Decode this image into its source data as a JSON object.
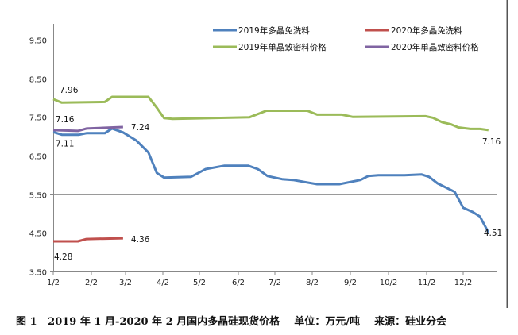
{
  "caption": "图 1   2019 年 1 月-2020 年 2 月国内多晶硅现货价格    单位：万元/吨    来源：硅业分会",
  "chart_data": {
    "type": "line",
    "title": "",
    "xlabel": "",
    "ylabel": "",
    "ylim": [
      3.5,
      9.5
    ],
    "yticks": [
      "9.50",
      "8.50",
      "7.50",
      "6.50",
      "5.50",
      "4.50",
      "3.50"
    ],
    "xticks": [
      "1/2",
      "2/2",
      "3/2",
      "4/2",
      "5/2",
      "6/2",
      "7/2",
      "8/2",
      "9/2",
      "10/2",
      "11/2",
      "12/2"
    ],
    "grid": true,
    "legend_placement": "top-right",
    "series": [
      {
        "name": "2019年多晶免洗料",
        "color": "#4f81bd",
        "x": [
          "1/2",
          "1/9",
          "1/23",
          "1/29",
          "2/13",
          "2/19",
          "2/28",
          "3/11",
          "3/21",
          "3/28",
          "4/3",
          "4/25",
          "5/7",
          "5/22",
          "6/10",
          "6/18",
          "6/26",
          "7/8",
          "7/17",
          "8/6",
          "8/24",
          "9/10",
          "9/16",
          "9/24",
          "10/15",
          "10/29",
          "11/4",
          "11/11",
          "11/25",
          "12/2",
          "12/10",
          "12/16",
          "12/23"
        ],
        "values": [
          7.11,
          7.04,
          7.04,
          7.08,
          7.08,
          7.2,
          7.1,
          6.89,
          6.58,
          6.05,
          5.93,
          5.95,
          6.15,
          6.24,
          6.24,
          6.15,
          5.97,
          5.89,
          5.87,
          5.76,
          5.76,
          5.87,
          5.97,
          5.99,
          5.99,
          6.01,
          5.95,
          5.78,
          5.56,
          5.15,
          5.04,
          4.92,
          4.51
        ]
      },
      {
        "name": "2020年多晶免洗料",
        "color": "#c0504d",
        "x": [
          "1/2",
          "1/22",
          "1/29",
          "2/28"
        ],
        "values": [
          4.28,
          4.28,
          4.34,
          4.36
        ]
      },
      {
        "name": "2019年单晶致密料价格",
        "color": "#9bbb59",
        "x": [
          "1/2",
          "1/9",
          "2/13",
          "2/19",
          "3/21",
          "3/28",
          "4/3",
          "4/10",
          "6/11",
          "6/25",
          "7/29",
          "8/6",
          "8/26",
          "9/4",
          "11/1",
          "11/7",
          "11/15",
          "11/22",
          "11/28",
          "12/8",
          "12/16",
          "12/23"
        ],
        "values": [
          7.96,
          7.87,
          7.89,
          8.02,
          8.02,
          7.74,
          7.47,
          7.45,
          7.49,
          7.66,
          7.66,
          7.56,
          7.56,
          7.5,
          7.52,
          7.48,
          7.36,
          7.31,
          7.23,
          7.19,
          7.19,
          7.16
        ]
      },
      {
        "name": "2020年单晶致密料价格",
        "color": "#8064a2",
        "x": [
          "1/2",
          "1/22",
          "1/29",
          "2/28"
        ],
        "values": [
          7.16,
          7.14,
          7.2,
          7.24
        ]
      }
    ],
    "annotations": [
      {
        "text": "7.96",
        "series": 2,
        "at": "1/2"
      },
      {
        "text": "7.16",
        "series": 3,
        "at": "1/2"
      },
      {
        "text": "7.11",
        "series": 0,
        "at": "1/2"
      },
      {
        "text": "7.24",
        "series": 3,
        "at": "2/28"
      },
      {
        "text": "4.28",
        "series": 1,
        "at": "1/2"
      },
      {
        "text": "4.36",
        "series": 1,
        "at": "2/28"
      },
      {
        "text": "7.16",
        "series": 2,
        "at": "12/23"
      },
      {
        "text": "4.51",
        "series": 0,
        "at": "12/23"
      }
    ]
  }
}
